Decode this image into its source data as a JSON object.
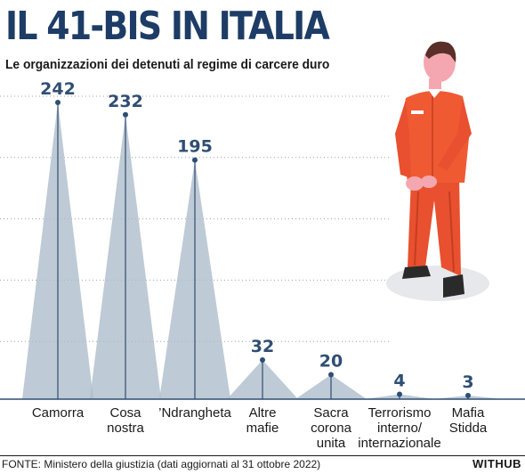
{
  "header": {
    "title": "IL 41-BIS IN ITALIA",
    "subtitle": "Le organizzazioni dei detenuti al regime di carcere duro"
  },
  "footer": {
    "source": "FONTE: Ministero della giustizia (dati aggiornati al 31 ottobre 2022)",
    "brand": "WITHUB"
  },
  "colors": {
    "cone": "#aebdcb",
    "stem": "#2f4e73",
    "value_text": "#2f4e73",
    "grid": "#9aa3ab",
    "title": "#1d3c66",
    "prisoner_suit": "#e8502f"
  },
  "chart_data": {
    "type": "bar",
    "categories": [
      "Camorra",
      "Cosa nostra",
      "’Ndrangheta",
      "Altre mafie",
      "Sacra corona unita",
      "Terrorismo interno/ internazionale",
      "Mafia Stidda"
    ],
    "category_lines": [
      [
        "Camorra"
      ],
      [
        "Cosa",
        "nostra"
      ],
      [
        "’Ndrangheta"
      ],
      [
        "Altre",
        "mafie"
      ],
      [
        "Sacra",
        "corona",
        "unita"
      ],
      [
        "Terrorismo",
        "interno/",
        "internazionale"
      ],
      [
        "Mafia",
        "Stidda"
      ]
    ],
    "values": [
      242,
      232,
      195,
      32,
      20,
      4,
      3
    ],
    "value_labels": [
      "242",
      "232",
      "195",
      "32",
      "20",
      "4",
      "3"
    ],
    "ylim": [
      0,
      250
    ],
    "grid": true,
    "legend": "none"
  }
}
